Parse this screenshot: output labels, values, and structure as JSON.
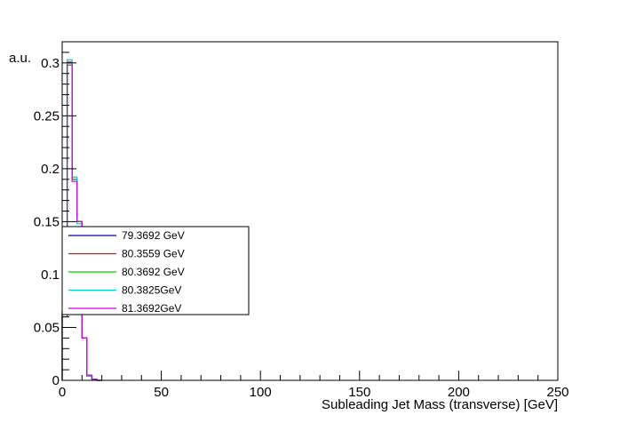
{
  "chart_data": {
    "type": "line",
    "title": "",
    "xlabel": "Subleading Jet Mass (transverse) [GeV]",
    "ylabel": "a.u.",
    "xlim": [
      0,
      250
    ],
    "ylim": [
      0,
      0.32
    ],
    "x_ticks": [
      "0",
      "50",
      "100",
      "150",
      "200",
      "250"
    ],
    "y_ticks": [
      "0",
      "0.05",
      "0.1",
      "0.15",
      "0.2",
      "0.25",
      "0.3"
    ],
    "bin_edges": [
      0,
      2.5,
      5,
      7.5,
      10,
      12.5,
      15,
      17.5,
      20
    ],
    "grid": false,
    "legend_position": "middle-left",
    "series": [
      {
        "name": "79.3692 GeV",
        "color": "#00008b",
        "values": [
          0.065,
          0.3,
          0.19,
          0.15,
          0.04,
          0.004,
          0.001,
          0
        ]
      },
      {
        "name": "80.3559 GeV",
        "color": "#ff0000",
        "values": [
          0.065,
          0.3,
          0.19,
          0.15,
          0.04,
          0.004,
          0.001,
          0
        ]
      },
      {
        "name": "80.3692 GeV",
        "color": "#00cc00",
        "values": [
          0.065,
          0.301,
          0.19,
          0.15,
          0.04,
          0.004,
          0.001,
          0
        ]
      },
      {
        "name": "80.3825GeV",
        "color": "#00cccc",
        "values": [
          0.063,
          0.303,
          0.192,
          0.148,
          0.04,
          0.004,
          0.001,
          0
        ]
      },
      {
        "name": "81.3692GeV",
        "color": "#cc00cc",
        "values": [
          0.06,
          0.298,
          0.188,
          0.15,
          0.04,
          0.005,
          0.001,
          0
        ]
      }
    ]
  }
}
